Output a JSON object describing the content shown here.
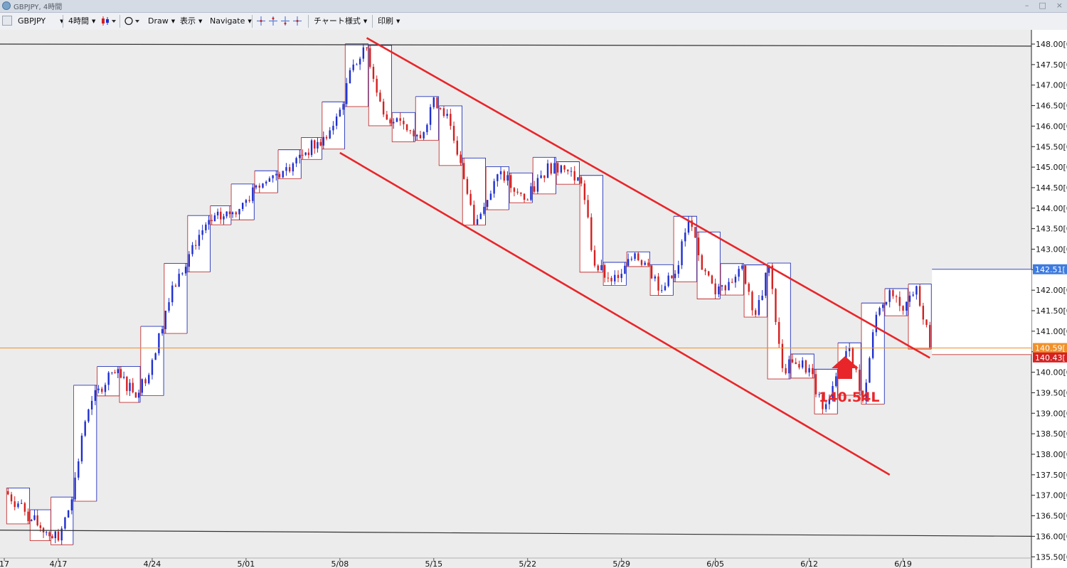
{
  "window": {
    "title": "GBPJPY, 4時間",
    "minimize": "–",
    "maximize": "□",
    "close": "×"
  },
  "toolbar": {
    "symbol": "GBPJPY",
    "timeframe": "4時間",
    "draw": "Draw",
    "display": "表示",
    "navigate": "Navigate",
    "chart_style": "チャート様式",
    "print": "印刷"
  },
  "chart_data": {
    "type": "candlestick",
    "title": "",
    "symbol": "GBPJPY",
    "timeframe": "4時間",
    "xlabel": "",
    "ylabel": "",
    "ylim": [
      135.5,
      148.2
    ],
    "x_ticks": [
      "17",
      "4/17",
      "4/24",
      "5/01",
      "5/08",
      "5/15",
      "5/22",
      "5/29",
      "6/05",
      "6/12",
      "6/19"
    ],
    "y_ticks": [
      "148.00[0",
      "147.50[0",
      "147.00[0",
      "146.50[0",
      "146.00[0",
      "145.50[0",
      "145.00[0",
      "144.50[0",
      "144.00[0",
      "143.50[0",
      "143.00[0",
      "142.50[1",
      "142.00[0",
      "141.50[0",
      "141.00[0",
      "140.50[0",
      "140.00[0",
      "139.50[0",
      "139.00[0",
      "138.50[0",
      "138.00[0",
      "137.50[0",
      "137.00[0",
      "136.50[0",
      "136.00[0",
      "135.50[0"
    ],
    "price_labels": [
      {
        "text": "142.51[",
        "value": 142.51,
        "color": "#3e7be0"
      },
      {
        "text": "140.59[",
        "value": 140.59,
        "color": "#f0902a"
      },
      {
        "text": "140.43[",
        "value": 140.43,
        "color": "#d52222"
      }
    ],
    "annotation": {
      "text": "140.54L",
      "value": 140.54
    },
    "channel_upper": [
      {
        "x": "5/10",
        "y": 148.15
      },
      {
        "x": "6/21",
        "y": 140.35
      }
    ],
    "channel_lower": [
      {
        "x": "5/08",
        "y": 145.35
      },
      {
        "x": "6/18",
        "y": 137.5
      }
    ],
    "horizontal_lines": [
      {
        "name": "resistance",
        "from": 148.0,
        "to": 147.95
      },
      {
        "name": "support",
        "from": 136.15,
        "to": 136.0
      }
    ],
    "current_price": 140.59,
    "colors": {
      "up": "#1f2fcf",
      "down": "#d42020",
      "channel": "#e8262a",
      "price_line": "#f0902a",
      "background": "#ececec"
    },
    "grid": false,
    "legend": "none",
    "series": [
      {
        "name": "",
        "x": [
          "4/13",
          "4/14",
          "4/15",
          "4/17",
          "4/18",
          "4/19",
          "4/20",
          "4/21",
          "4/23",
          "4/24",
          "4/25",
          "4/26",
          "4/27",
          "4/28",
          "4/30",
          "5/01",
          "5/02",
          "5/03",
          "5/04",
          "5/05",
          "5/07",
          "5/08",
          "5/09",
          "5/10",
          "5/11",
          "5/12",
          "5/13",
          "5/14",
          "5/15",
          "5/16",
          "5/17",
          "5/18",
          "5/19",
          "5/20",
          "5/21",
          "5/22",
          "5/23",
          "5/24",
          "5/25",
          "5/26",
          "5/27",
          "5/28",
          "5/29",
          "5/30",
          "5/31",
          "6/01",
          "6/02",
          "6/03",
          "6/04",
          "6/05",
          "6/06",
          "6/07",
          "6/08",
          "6/09",
          "6/10",
          "6/11",
          "6/12",
          "6/13",
          "6/14",
          "6/15",
          "6/16",
          "6/17",
          "6/18",
          "6/19",
          "6/20",
          "6/21"
        ],
        "values": [
          137.1,
          136.8,
          136.4,
          135.9,
          136.9,
          138.8,
          139.6,
          140.0,
          139.5,
          140.3,
          141.5,
          142.4,
          143.1,
          143.6,
          143.9,
          144.2,
          144.5,
          144.8,
          145.0,
          145.3,
          145.7,
          146.4,
          147.5,
          147.9,
          146.6,
          146.1,
          145.9,
          145.7,
          146.7,
          146.3,
          145.1,
          143.6,
          144.2,
          144.9,
          144.4,
          144.2,
          144.8,
          145.1,
          144.9,
          144.6,
          142.6,
          142.3,
          142.4,
          142.9,
          142.6,
          142.0,
          142.4,
          143.7,
          142.5,
          141.9,
          142.2,
          142.6,
          141.4,
          142.6,
          140.1,
          140.2,
          140.1,
          139.1,
          139.9,
          140.6,
          139.3,
          141.4,
          142.0,
          141.5,
          142.1,
          140.6
        ]
      }
    ]
  }
}
